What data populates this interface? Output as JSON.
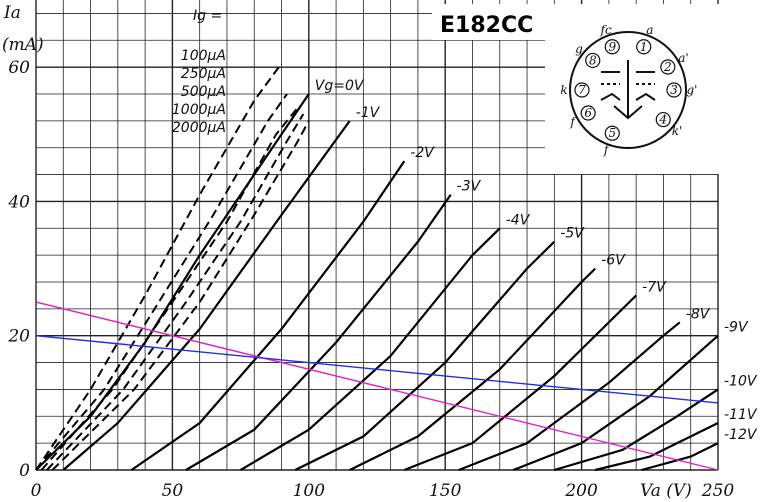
{
  "chart_data": {
    "type": "line",
    "title": "E182CC",
    "xlabel": "Va (V)",
    "ylabel": "Ia (mA)",
    "xlim": [
      0,
      250
    ],
    "ylim": [
      0,
      70
    ],
    "grid": true,
    "x_ticks": [
      "0",
      "50",
      "100",
      "150",
      "200",
      "250"
    ],
    "y_ticks": [
      "0",
      "20",
      "40",
      "60"
    ],
    "x_unit_label": "Va (V)",
    "y_label_top": "Ia",
    "y_label_unit": "(mA)",
    "ig_header": "Ig =",
    "ig_labels": [
      "100μA",
      "250μA",
      "500μA",
      "1000μA",
      "2000μA"
    ],
    "series": [
      {
        "name": "Vg=0V",
        "values": [
          [
            0,
            0
          ],
          [
            20,
            8
          ],
          [
            40,
            19
          ],
          [
            60,
            32
          ],
          [
            80,
            44
          ],
          [
            100,
            56
          ]
        ]
      },
      {
        "name": "-1V",
        "values": [
          [
            10,
            0
          ],
          [
            30,
            7
          ],
          [
            60,
            21
          ],
          [
            90,
            38
          ],
          [
            115,
            52
          ]
        ]
      },
      {
        "name": "-2V",
        "values": [
          [
            35,
            0
          ],
          [
            60,
            7
          ],
          [
            90,
            21
          ],
          [
            120,
            37
          ],
          [
            135,
            46
          ]
        ]
      },
      {
        "name": "-3V",
        "values": [
          [
            55,
            0
          ],
          [
            80,
            6
          ],
          [
            110,
            19
          ],
          [
            140,
            34
          ],
          [
            152,
            41
          ]
        ]
      },
      {
        "name": "-4V",
        "values": [
          [
            75,
            0
          ],
          [
            100,
            6
          ],
          [
            130,
            17
          ],
          [
            160,
            32
          ],
          [
            170,
            36
          ]
        ]
      },
      {
        "name": "-5V",
        "values": [
          [
            95,
            0
          ],
          [
            120,
            5
          ],
          [
            150,
            16
          ],
          [
            180,
            30
          ],
          [
            190,
            34
          ]
        ]
      },
      {
        "name": "-6V",
        "values": [
          [
            115,
            0
          ],
          [
            140,
            5
          ],
          [
            170,
            15
          ],
          [
            200,
            28
          ],
          [
            205,
            30
          ]
        ]
      },
      {
        "name": "-7V",
        "values": [
          [
            135,
            0
          ],
          [
            160,
            4
          ],
          [
            190,
            14
          ],
          [
            215,
            24
          ],
          [
            220,
            26
          ]
        ]
      },
      {
        "name": "-8V",
        "values": [
          [
            155,
            0
          ],
          [
            180,
            4
          ],
          [
            210,
            13
          ],
          [
            230,
            20
          ],
          [
            236,
            22
          ]
        ]
      },
      {
        "name": "-9V",
        "values": [
          [
            175,
            0
          ],
          [
            200,
            4
          ],
          [
            225,
            11
          ],
          [
            250,
            20
          ]
        ]
      },
      {
        "name": "-10V",
        "values": [
          [
            190,
            0
          ],
          [
            215,
            3
          ],
          [
            235,
            8
          ],
          [
            250,
            12
          ]
        ]
      },
      {
        "name": "-11V",
        "values": [
          [
            205,
            0
          ],
          [
            225,
            2
          ],
          [
            250,
            7
          ]
        ]
      },
      {
        "name": "-12V",
        "values": [
          [
            222,
            0
          ],
          [
            240,
            2
          ],
          [
            250,
            4
          ]
        ]
      }
    ],
    "grid_current_curves": [
      {
        "name": "100μA",
        "values": [
          [
            0,
            0
          ],
          [
            20,
            12
          ],
          [
            40,
            26
          ],
          [
            60,
            41
          ],
          [
            80,
            55
          ],
          [
            89,
            60
          ]
        ]
      },
      {
        "name": "250μA",
        "values": [
          [
            0,
            0
          ],
          [
            25,
            12
          ],
          [
            45,
            25
          ],
          [
            65,
            38
          ],
          [
            85,
            52
          ],
          [
            92,
            56
          ]
        ]
      },
      {
        "name": "500μA",
        "values": [
          [
            2,
            0
          ],
          [
            28,
            12
          ],
          [
            50,
            25
          ],
          [
            70,
            37
          ],
          [
            88,
            50
          ],
          [
            96,
            54
          ]
        ]
      },
      {
        "name": "1000μA",
        "values": [
          [
            4,
            0
          ],
          [
            32,
            12
          ],
          [
            55,
            25
          ],
          [
            75,
            37
          ],
          [
            92,
            49
          ],
          [
            98,
            53
          ]
        ]
      },
      {
        "name": "2000μA",
        "values": [
          [
            6,
            0
          ],
          [
            36,
            12
          ],
          [
            60,
            25
          ],
          [
            80,
            38
          ],
          [
            96,
            49
          ],
          [
            100,
            52
          ]
        ]
      }
    ],
    "load_lines": [
      {
        "color": "#e020c0",
        "values": [
          [
            0,
            25
          ],
          [
            250,
            0
          ]
        ]
      },
      {
        "color": "#2030e0",
        "values": [
          [
            0,
            20
          ],
          [
            250,
            10
          ]
        ]
      }
    ]
  },
  "pinout": {
    "pins": [
      "a",
      "a'",
      "g'",
      "k'",
      "f",
      "f",
      "k",
      "g",
      "fc"
    ],
    "numbers": [
      "1",
      "2",
      "3",
      "4",
      "5",
      "6",
      "7",
      "8",
      "9"
    ]
  }
}
